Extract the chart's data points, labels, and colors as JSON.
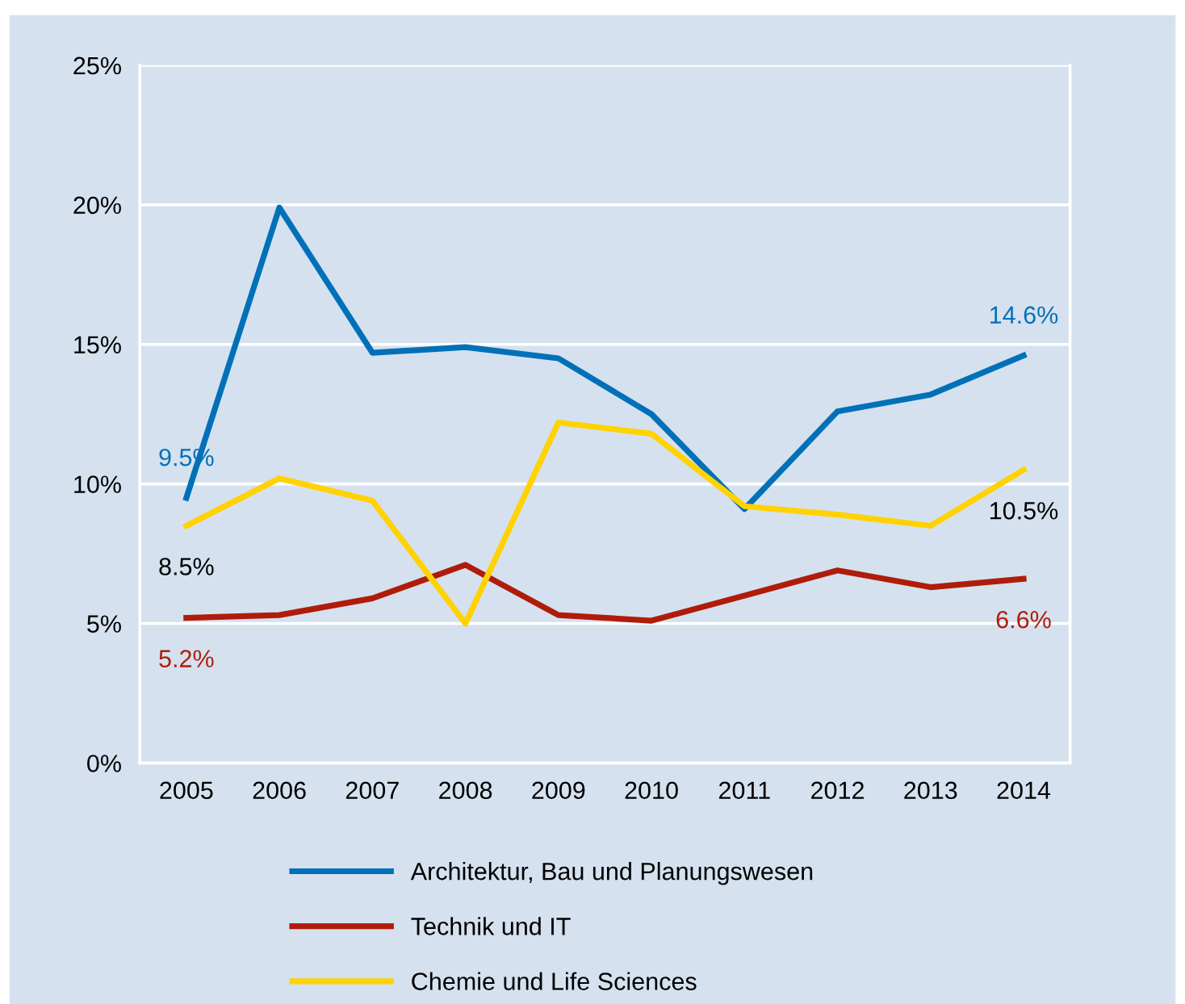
{
  "chart_data": {
    "type": "line",
    "categories": [
      "2005",
      "2006",
      "2007",
      "2008",
      "2009",
      "2010",
      "2011",
      "2012",
      "2013",
      "2014"
    ],
    "series": [
      {
        "name": "Architektur, Bau und Planungswesen",
        "color": "#0070b8",
        "values": [
          9.5,
          19.9,
          14.7,
          14.9,
          14.5,
          12.5,
          9.1,
          12.6,
          13.2,
          14.6
        ],
        "value_labels": [
          "9.5%",
          null,
          null,
          null,
          null,
          null,
          null,
          null,
          null,
          "14.6%"
        ]
      },
      {
        "name": "Technik und IT",
        "color": "#b01c0a",
        "values": [
          5.2,
          5.3,
          5.9,
          7.1,
          5.3,
          5.1,
          6.0,
          6.9,
          6.3,
          6.6
        ],
        "value_labels": [
          "5.2%",
          null,
          null,
          null,
          null,
          null,
          null,
          null,
          null,
          "6.6%"
        ]
      },
      {
        "name": "Chemie und Life Sciences",
        "color": "#ffd200",
        "values": [
          8.5,
          10.2,
          9.4,
          5.0,
          12.2,
          11.8,
          9.2,
          8.9,
          8.5,
          10.5
        ],
        "value_labels": [
          "8.5%",
          null,
          null,
          null,
          null,
          null,
          null,
          null,
          null,
          "10.5%"
        ]
      }
    ],
    "ylim": [
      0,
      25
    ],
    "yticks": [
      {
        "value": 0,
        "label": "0%"
      },
      {
        "value": 5,
        "label": "5%"
      },
      {
        "value": 10,
        "label": "10%"
      },
      {
        "value": 15,
        "label": "15%"
      },
      {
        "value": 20,
        "label": "20%"
      },
      {
        "value": 25,
        "label": "25%"
      }
    ],
    "grid": "y",
    "legend": "bottom",
    "marker": "none",
    "line_style": "solid"
  }
}
